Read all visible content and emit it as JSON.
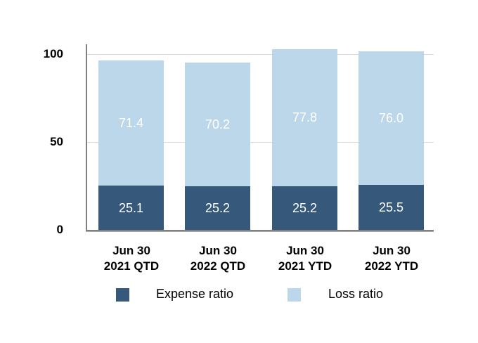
{
  "chart_data": {
    "type": "bar",
    "stacked": true,
    "title": "",
    "categories": [
      {
        "line1": "Jun 30",
        "line2": "2021 QTD"
      },
      {
        "line1": "Jun 30",
        "line2": "2022 QTD"
      },
      {
        "line1": "Jun 30",
        "line2": "2021 YTD"
      },
      {
        "line1": "Jun 30",
        "line2": "2022 YTD"
      }
    ],
    "series": [
      {
        "name": "Expense ratio",
        "color": "#36597B",
        "values": [
          25.1,
          25.2,
          25.2,
          25.5
        ]
      },
      {
        "name": "Loss ratio",
        "color": "#BCD7EA",
        "values": [
          71.4,
          70.2,
          77.8,
          76.0
        ]
      }
    ],
    "y_axis": {
      "ticks": [
        0,
        50,
        100
      ],
      "max": 106
    },
    "grid": true,
    "legend_position": "bottom",
    "value_label_color": "#FFFFFF"
  },
  "colors": {
    "background": "#FFFFFF",
    "gridline": "#D9D9D9",
    "axis": "#808080",
    "axis_shadow": "#ABABAB",
    "tick_text": "#000000"
  }
}
